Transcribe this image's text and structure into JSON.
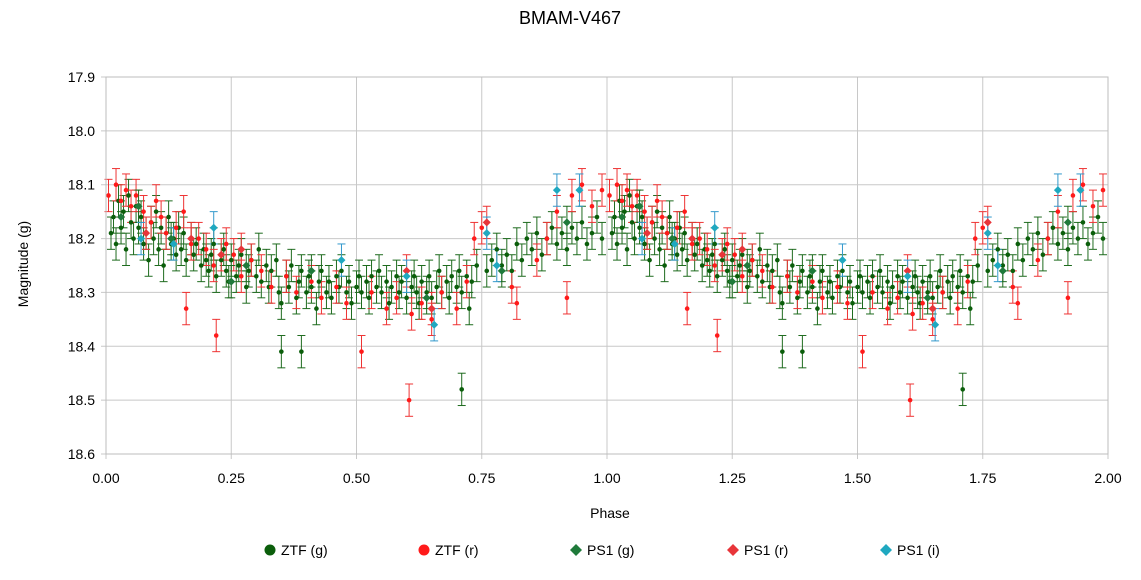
{
  "chart_data": {
    "type": "scatter",
    "title": "BMAM-V467",
    "xlabel": "Phase",
    "ylabel": "Magnitude (g)",
    "xlim": [
      0.0,
      2.0
    ],
    "ylim": [
      17.9,
      18.6
    ],
    "y_inverted": true,
    "x_ticks": [
      "0.00",
      "0.25",
      "0.50",
      "0.75",
      "1.00",
      "1.25",
      "1.50",
      "1.75",
      "2.00"
    ],
    "y_ticks": [
      "17.9",
      "18.0",
      "18.1",
      "18.2",
      "18.3",
      "18.4",
      "18.5",
      "18.6"
    ],
    "grid": true,
    "legend_position": "bottom",
    "colors": {
      "ztf_g": "#0b5e0b",
      "ztf_r": "#ff1a1a",
      "ps1_g": "#1f7a3a",
      "ps1_r": "#e8353a",
      "ps1_i": "#1fa8c0",
      "err_g": "#1e6b1e",
      "err_r": "#ee3333",
      "err_i": "#3399cc",
      "grid": "#c8c8c8"
    },
    "series": [
      {
        "name": "ZTF (g)",
        "marker": "circle",
        "points": [
          [
            0.01,
            18.19,
            0.03
          ],
          [
            0.015,
            18.16,
            0.03
          ],
          [
            0.02,
            18.21,
            0.03
          ],
          [
            0.025,
            18.13,
            0.03
          ],
          [
            0.03,
            18.18,
            0.03
          ],
          [
            0.035,
            18.15,
            0.03
          ],
          [
            0.04,
            18.22,
            0.03
          ],
          [
            0.045,
            18.12,
            0.03
          ],
          [
            0.05,
            18.17,
            0.03
          ],
          [
            0.055,
            18.2,
            0.03
          ],
          [
            0.06,
            18.14,
            0.03
          ],
          [
            0.065,
            18.18,
            0.03
          ],
          [
            0.07,
            18.16,
            0.03
          ],
          [
            0.075,
            18.21,
            0.03
          ],
          [
            0.08,
            18.19,
            0.03
          ],
          [
            0.085,
            18.24,
            0.03
          ],
          [
            0.09,
            18.17,
            0.03
          ],
          [
            0.095,
            18.2,
            0.03
          ],
          [
            0.1,
            18.15,
            0.03
          ],
          [
            0.105,
            18.22,
            0.03
          ],
          [
            0.11,
            18.18,
            0.03
          ],
          [
            0.115,
            18.25,
            0.03
          ],
          [
            0.12,
            18.19,
            0.03
          ],
          [
            0.125,
            18.16,
            0.03
          ],
          [
            0.13,
            18.21,
            0.03
          ],
          [
            0.135,
            18.2,
            0.03
          ],
          [
            0.14,
            18.23,
            0.03
          ],
          [
            0.145,
            18.18,
            0.03
          ],
          [
            0.15,
            18.22,
            0.03
          ],
          [
            0.155,
            18.19,
            0.03
          ],
          [
            0.16,
            18.24,
            0.03
          ],
          [
            0.17,
            18.2,
            0.03
          ],
          [
            0.175,
            18.23,
            0.03
          ],
          [
            0.18,
            18.21,
            0.03
          ],
          [
            0.19,
            18.25,
            0.03
          ],
          [
            0.195,
            18.22,
            0.03
          ],
          [
            0.2,
            18.24,
            0.03
          ],
          [
            0.205,
            18.26,
            0.03
          ],
          [
            0.21,
            18.23,
            0.03
          ],
          [
            0.215,
            18.21,
            0.03
          ],
          [
            0.22,
            18.27,
            0.03
          ],
          [
            0.23,
            18.24,
            0.03
          ],
          [
            0.235,
            18.22,
            0.03
          ],
          [
            0.24,
            18.26,
            0.03
          ],
          [
            0.245,
            18.28,
            0.03
          ],
          [
            0.25,
            18.24,
            0.03
          ],
          [
            0.26,
            18.27,
            0.03
          ],
          [
            0.265,
            18.25,
            0.03
          ],
          [
            0.27,
            18.23,
            0.03
          ],
          [
            0.28,
            18.29,
            0.03
          ],
          [
            0.285,
            18.26,
            0.03
          ],
          [
            0.29,
            18.24,
            0.03
          ],
          [
            0.3,
            18.27,
            0.03
          ],
          [
            0.305,
            18.22,
            0.03
          ],
          [
            0.31,
            18.28,
            0.03
          ],
          [
            0.32,
            18.25,
            0.03
          ],
          [
            0.325,
            18.29,
            0.03
          ],
          [
            0.33,
            18.26,
            0.03
          ],
          [
            0.34,
            18.24,
            0.03
          ],
          [
            0.345,
            18.3,
            0.03
          ],
          [
            0.35,
            18.32,
            0.03
          ],
          [
            0.36,
            18.27,
            0.03
          ],
          [
            0.365,
            18.29,
            0.03
          ],
          [
            0.37,
            18.25,
            0.03
          ],
          [
            0.38,
            18.31,
            0.03
          ],
          [
            0.385,
            18.28,
            0.03
          ],
          [
            0.39,
            18.26,
            0.03
          ],
          [
            0.4,
            18.3,
            0.03
          ],
          [
            0.405,
            18.27,
            0.03
          ],
          [
            0.41,
            18.29,
            0.03
          ],
          [
            0.42,
            18.33,
            0.03
          ],
          [
            0.425,
            18.28,
            0.03
          ],
          [
            0.43,
            18.26,
            0.03
          ],
          [
            0.44,
            18.3,
            0.03
          ],
          [
            0.445,
            18.28,
            0.03
          ],
          [
            0.45,
            18.31,
            0.03
          ],
          [
            0.46,
            18.27,
            0.03
          ],
          [
            0.465,
            18.29,
            0.03
          ],
          [
            0.47,
            18.26,
            0.03
          ],
          [
            0.48,
            18.3,
            0.03
          ],
          [
            0.485,
            18.28,
            0.03
          ],
          [
            0.49,
            18.32,
            0.03
          ],
          [
            0.5,
            18.29,
            0.03
          ],
          [
            0.505,
            18.27,
            0.03
          ],
          [
            0.51,
            18.3,
            0.03
          ],
          [
            0.52,
            18.28,
            0.03
          ],
          [
            0.525,
            18.31,
            0.03
          ],
          [
            0.53,
            18.27,
            0.03
          ],
          [
            0.54,
            18.29,
            0.03
          ],
          [
            0.545,
            18.26,
            0.03
          ],
          [
            0.55,
            18.3,
            0.03
          ],
          [
            0.56,
            18.28,
            0.03
          ],
          [
            0.565,
            18.32,
            0.03
          ],
          [
            0.57,
            18.29,
            0.03
          ],
          [
            0.58,
            18.27,
            0.03
          ],
          [
            0.585,
            18.3,
            0.03
          ],
          [
            0.59,
            18.28,
            0.03
          ],
          [
            0.6,
            18.31,
            0.03
          ],
          [
            0.61,
            18.29,
            0.03
          ],
          [
            0.615,
            18.27,
            0.03
          ],
          [
            0.62,
            18.3,
            0.03
          ],
          [
            0.625,
            18.32,
            0.03
          ],
          [
            0.63,
            18.28,
            0.03
          ],
          [
            0.64,
            18.3,
            0.03
          ],
          [
            0.645,
            18.27,
            0.03
          ],
          [
            0.65,
            18.31,
            0.03
          ],
          [
            0.66,
            18.29,
            0.03
          ],
          [
            0.665,
            18.26,
            0.03
          ],
          [
            0.67,
            18.3,
            0.03
          ],
          [
            0.68,
            18.28,
            0.03
          ],
          [
            0.685,
            18.31,
            0.03
          ],
          [
            0.69,
            18.27,
            0.03
          ],
          [
            0.7,
            18.29,
            0.03
          ],
          [
            0.705,
            18.26,
            0.03
          ],
          [
            0.71,
            18.3,
            0.03
          ],
          [
            0.72,
            18.27,
            0.03
          ],
          [
            0.725,
            18.33,
            0.03
          ],
          [
            0.73,
            18.28,
            0.03
          ],
          [
            0.74,
            18.25,
            0.03
          ],
          [
            0.35,
            18.41,
            0.03
          ],
          [
            0.39,
            18.41,
            0.03
          ],
          [
            0.71,
            18.48,
            0.03
          ],
          [
            0.76,
            18.26,
            0.03
          ],
          [
            0.77,
            18.24,
            0.03
          ],
          [
            0.78,
            18.22,
            0.03
          ],
          [
            0.79,
            18.25,
            0.03
          ],
          [
            0.8,
            18.23,
            0.03
          ],
          [
            0.81,
            18.26,
            0.03
          ],
          [
            0.82,
            18.21,
            0.03
          ],
          [
            0.83,
            18.24,
            0.03
          ],
          [
            0.84,
            18.2,
            0.03
          ],
          [
            0.85,
            18.22,
            0.03
          ],
          [
            0.86,
            18.19,
            0.03
          ],
          [
            0.87,
            18.23,
            0.03
          ],
          [
            0.88,
            18.2,
            0.03
          ],
          [
            0.89,
            18.18,
            0.03
          ],
          [
            0.9,
            18.21,
            0.03
          ],
          [
            0.91,
            18.19,
            0.03
          ],
          [
            0.92,
            18.22,
            0.03
          ],
          [
            0.93,
            18.18,
            0.03
          ],
          [
            0.94,
            18.2,
            0.03
          ],
          [
            0.95,
            18.17,
            0.03
          ],
          [
            0.96,
            18.21,
            0.03
          ],
          [
            0.97,
            18.19,
            0.03
          ],
          [
            0.98,
            18.16,
            0.03
          ],
          [
            0.99,
            18.2,
            0.03
          ]
        ]
      },
      {
        "name": "ZTF (r)",
        "marker": "circle",
        "points": [
          [
            0.005,
            18.12,
            0.03
          ],
          [
            0.02,
            18.1,
            0.03
          ],
          [
            0.03,
            18.13,
            0.03
          ],
          [
            0.04,
            18.11,
            0.03
          ],
          [
            0.05,
            18.14,
            0.03
          ],
          [
            0.06,
            18.12,
            0.03
          ],
          [
            0.075,
            18.15,
            0.03
          ],
          [
            0.09,
            18.17,
            0.03
          ],
          [
            0.1,
            18.13,
            0.03
          ],
          [
            0.11,
            18.16,
            0.03
          ],
          [
            0.12,
            18.19,
            0.03
          ],
          [
            0.14,
            18.18,
            0.03
          ],
          [
            0.155,
            18.15,
            0.03
          ],
          [
            0.16,
            18.33,
            0.03
          ],
          [
            0.17,
            18.21,
            0.03
          ],
          [
            0.185,
            18.2,
            0.03
          ],
          [
            0.2,
            18.22,
            0.03
          ],
          [
            0.215,
            18.25,
            0.03
          ],
          [
            0.22,
            18.38,
            0.03
          ],
          [
            0.24,
            18.21,
            0.03
          ],
          [
            0.255,
            18.23,
            0.03
          ],
          [
            0.27,
            18.27,
            0.03
          ],
          [
            0.29,
            18.24,
            0.03
          ],
          [
            0.31,
            18.26,
            0.03
          ],
          [
            0.33,
            18.29,
            0.03
          ],
          [
            0.36,
            18.27,
            0.03
          ],
          [
            0.38,
            18.3,
            0.03
          ],
          [
            0.41,
            18.28,
            0.03
          ],
          [
            0.43,
            18.31,
            0.03
          ],
          [
            0.46,
            18.29,
            0.03
          ],
          [
            0.48,
            18.32,
            0.03
          ],
          [
            0.51,
            18.41,
            0.03
          ],
          [
            0.53,
            18.3,
            0.03
          ],
          [
            0.56,
            18.33,
            0.03
          ],
          [
            0.58,
            18.31,
            0.03
          ],
          [
            0.605,
            18.5,
            0.03
          ],
          [
            0.61,
            18.34,
            0.03
          ],
          [
            0.63,
            18.32,
            0.03
          ],
          [
            0.65,
            18.35,
            0.03
          ],
          [
            0.67,
            18.3,
            0.03
          ],
          [
            0.7,
            18.33,
            0.03
          ],
          [
            0.72,
            18.28,
            0.03
          ],
          [
            0.735,
            18.2,
            0.03
          ],
          [
            0.75,
            18.18,
            0.03
          ],
          [
            0.81,
            18.29,
            0.03
          ],
          [
            0.82,
            18.32,
            0.03
          ],
          [
            0.86,
            18.24,
            0.03
          ],
          [
            0.88,
            18.2,
            0.03
          ],
          [
            0.9,
            18.15,
            0.03
          ],
          [
            0.92,
            18.31,
            0.03
          ],
          [
            0.93,
            18.12,
            0.03
          ],
          [
            0.95,
            18.1,
            0.03
          ],
          [
            0.97,
            18.14,
            0.03
          ],
          [
            0.99,
            18.11,
            0.03
          ]
        ]
      },
      {
        "name": "PS1 (g)",
        "marker": "diamond",
        "points": [
          [
            0.03,
            18.16,
            0.03
          ],
          [
            0.065,
            18.14,
            0.03
          ],
          [
            0.13,
            18.2,
            0.03
          ],
          [
            0.25,
            18.28,
            0.03
          ],
          [
            0.28,
            18.25,
            0.03
          ],
          [
            0.41,
            18.26,
            0.03
          ],
          [
            0.64,
            18.31,
            0.03
          ],
          [
            0.79,
            18.26,
            0.03
          ],
          [
            0.92,
            18.17,
            0.03
          ]
        ]
      },
      {
        "name": "PS1 (r)",
        "marker": "diamond",
        "points": [
          [
            0.08,
            18.19,
            0.03
          ],
          [
            0.17,
            18.2,
            0.03
          ],
          [
            0.23,
            18.23,
            0.03
          ],
          [
            0.27,
            18.22,
            0.03
          ],
          [
            0.6,
            18.26,
            0.03
          ],
          [
            0.65,
            18.33,
            0.03
          ],
          [
            0.76,
            18.17,
            0.03
          ]
        ]
      },
      {
        "name": "PS1 (i)",
        "marker": "diamond",
        "points": [
          [
            0.07,
            18.2,
            0.03
          ],
          [
            0.135,
            18.21,
            0.03
          ],
          [
            0.215,
            18.18,
            0.03
          ],
          [
            0.47,
            18.24,
            0.03
          ],
          [
            0.6,
            18.27,
            0.03
          ],
          [
            0.655,
            18.36,
            0.03
          ],
          [
            0.76,
            18.19,
            0.03
          ],
          [
            0.78,
            18.25,
            0.03
          ],
          [
            0.9,
            18.11,
            0.03
          ],
          [
            0.945,
            18.11,
            0.03
          ]
        ]
      }
    ]
  },
  "legend": [
    {
      "label": "ZTF (g)",
      "marker": "circle",
      "color": "#0b5e0b"
    },
    {
      "label": "ZTF (r)",
      "marker": "circle",
      "color": "#ff1a1a"
    },
    {
      "label": "PS1 (g)",
      "marker": "diamond",
      "color": "#1f7a3a"
    },
    {
      "label": "PS1 (r)",
      "marker": "diamond",
      "color": "#e8353a"
    },
    {
      "label": "PS1 (i)",
      "marker": "diamond",
      "color": "#1fa8c0"
    }
  ]
}
